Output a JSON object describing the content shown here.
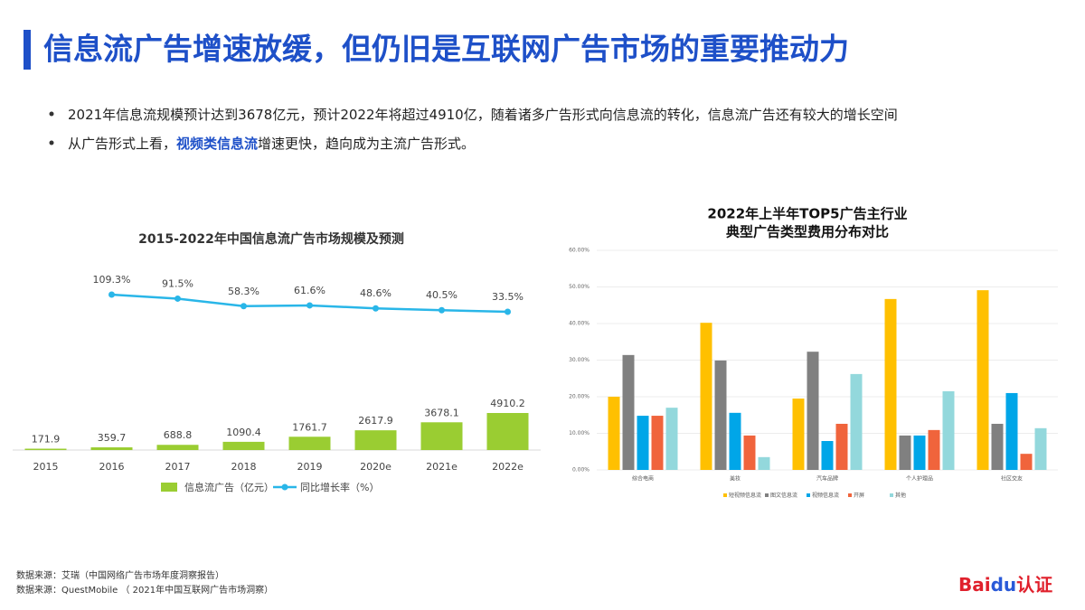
{
  "header": {
    "title": "信息流广告增速放缓，但仍旧是互联网广告市场的重要推动力"
  },
  "bullets": [
    [
      "2021年信息流规模预计达到3678亿元，预计2022年将超过4910亿，随着诸多广告形式向信息流的转化，信息流广告还有较大的增长空间"
    ],
    [
      "从广告形式上看，",
      "视频类信息流",
      "增速更快，趋向成为主流广告形式。"
    ]
  ],
  "sources": [
    "数据来源：艾瑞（中国网络广告市场年度洞察报告）",
    "数据来源：QuestMobile （ 2021年中国互联网广告市场洞察）"
  ],
  "logo": [
    "Bai",
    "du",
    "认证"
  ],
  "chart_data": [
    {
      "type": "bar-line",
      "title": "2015-2022年中国信息流广告市场规模及预测",
      "categories": [
        "2015",
        "2016",
        "2017",
        "2018",
        "2019",
        "2020e",
        "2021e",
        "2022e"
      ],
      "series": [
        {
          "name": "信息流广告（亿元）",
          "type": "bar",
          "color": "#9acd32",
          "values": [
            171.9,
            359.7,
            688.8,
            1090.4,
            1761.7,
            2617.9,
            3678.1,
            4910.2
          ]
        },
        {
          "name": "同比增长率（%）",
          "type": "line",
          "axis": "y2",
          "color": "#29b6e8",
          "values": [
            null,
            109.3,
            91.5,
            58.3,
            61.6,
            48.6,
            40.5,
            33.5
          ],
          "value_labels": [
            null,
            "109.3%",
            "91.5%",
            "58.3%",
            "61.6%",
            "48.6%",
            "40.5%",
            "33.5%"
          ]
        }
      ]
    },
    {
      "type": "grouped-bar",
      "title": [
        "2022年上半年TOP5广告主行业",
        "典型广告类型费用分布对比"
      ],
      "categories": [
        "综合电商",
        "美妆",
        "汽车品牌",
        "个人护理品",
        "社区交友"
      ],
      "ylim": [
        0,
        60
      ],
      "yticks": [
        {
          "value": 0,
          "label": "0.00%"
        },
        {
          "value": 10,
          "label": "10.00%"
        },
        {
          "value": 20,
          "label": "20.00%"
        },
        {
          "value": 30,
          "label": "30.00%"
        },
        {
          "value": 40,
          "label": "40.00%"
        },
        {
          "value": 50,
          "label": "50.00%"
        },
        {
          "value": 60,
          "label": "60.00%"
        }
      ],
      "grid": true,
      "series": [
        {
          "name": "短视频信息流",
          "color": "#ffc000",
          "values": [
            20.0,
            40.2,
            19.5,
            46.7,
            49.1
          ]
        },
        {
          "name": "图文信息流",
          "color": "#808080",
          "values": [
            31.4,
            29.9,
            32.3,
            9.4,
            12.6
          ]
        },
        {
          "name": "视频信息流",
          "color": "#00a6e8",
          "values": [
            14.8,
            15.6,
            7.9,
            9.4,
            21.0
          ]
        },
        {
          "name": "开屏",
          "color": "#f0643c",
          "values": [
            14.8,
            9.4,
            12.6,
            10.9,
            4.4
          ]
        },
        {
          "name": "其他",
          "color": "#93d8dc",
          "values": [
            17.0,
            3.5,
            26.2,
            21.5,
            11.4
          ]
        }
      ]
    }
  ]
}
